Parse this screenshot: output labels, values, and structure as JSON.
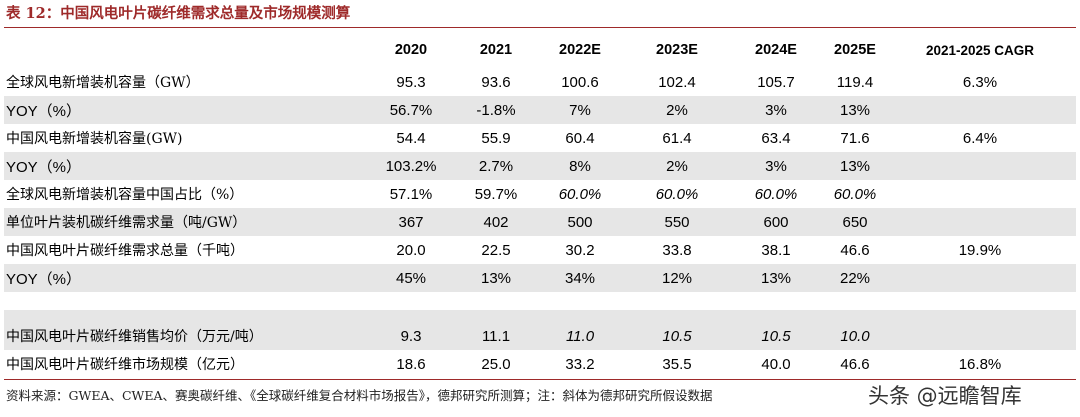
{
  "title": "表 12：中国风电叶片碳纤维需求总量及市场规模测算",
  "headers": [
    "",
    "2020",
    "2021",
    "2022E",
    "2023E",
    "2024E",
    "2025E",
    "2021-2025 CAGR"
  ],
  "rows": [
    {
      "label": "全球风电新增装机容量（GW）",
      "values": [
        "95.3",
        "93.6",
        "100.6",
        "102.4",
        "105.7",
        "119.4"
      ],
      "cagr": "6.3%"
    },
    {
      "label": "YOY（%）",
      "values": [
        "56.7%",
        "-1.8%",
        "7%",
        "2%",
        "3%",
        "13%"
      ],
      "cagr": ""
    },
    {
      "label": "中国风电新增装机容量(GW)",
      "values": [
        "54.4",
        "55.9",
        "60.4",
        "61.4",
        "63.4",
        "71.6"
      ],
      "cagr": "6.4%"
    },
    {
      "label": "YOY（%）",
      "values": [
        "103.2%",
        "2.7%",
        "8%",
        "2%",
        "3%",
        "13%"
      ],
      "cagr": ""
    },
    {
      "label": "全球风电新增装机容量中国占比（%）",
      "values": [
        "57.1%",
        "59.7%",
        "60.0%",
        "60.0%",
        "60.0%",
        "60.0%"
      ],
      "cagr": ""
    },
    {
      "label": "单位叶片装机碳纤维需求量（吨/GW）",
      "values": [
        "367",
        "402",
        "500",
        "550",
        "600",
        "650"
      ],
      "cagr": ""
    },
    {
      "label": "中国风电叶片碳纤维需求总量（千吨）",
      "values": [
        "20.0",
        "22.5",
        "30.2",
        "33.8",
        "38.1",
        "46.6"
      ],
      "cagr": "19.9%"
    },
    {
      "label": "YOY（%）",
      "values": [
        "45%",
        "13%",
        "34%",
        "12%",
        "13%",
        "22%"
      ],
      "cagr": ""
    },
    {
      "label": "中国风电叶片碳纤维销售均价（万元/吨）",
      "values": [
        "9.3",
        "11.1",
        "11.0",
        "10.5",
        "10.5",
        "10.0"
      ],
      "cagr": ""
    },
    {
      "label": "中国风电叶片碳纤维市场规模（亿元）",
      "values": [
        "18.6",
        "25.0",
        "33.2",
        "35.5",
        "40.0",
        "46.6"
      ],
      "cagr": "16.8%"
    }
  ],
  "source": "资料来源：GWEA、CWEA、赛奥碳纤维、《全球碳纤维复合材料市场报告》，德邦研究所测算；注：斜体为德邦研究所假设数据",
  "watermark": "头条 @远瞻智库"
}
